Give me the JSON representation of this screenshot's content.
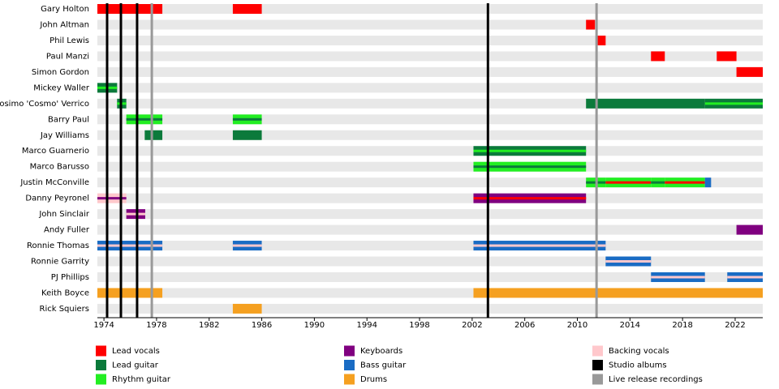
{
  "chart_data": {
    "type": "timeline",
    "xlim": [
      1973.5,
      2024.1
    ],
    "xticks": [
      1974,
      1978,
      1982,
      1986,
      1990,
      1994,
      1998,
      2002,
      2006,
      2010,
      2014,
      2018,
      2022
    ],
    "series": [
      {
        "name": "Lead vocals",
        "color": "#ff0000"
      },
      {
        "name": "Lead guitar",
        "color": "#0b7a3b"
      },
      {
        "name": "Rhythm guitar",
        "color": "#22ee22"
      },
      {
        "name": "Keyboards",
        "color": "#800080"
      },
      {
        "name": "Bass guitar",
        "color": "#1a6cc4"
      },
      {
        "name": "Drums",
        "color": "#f5a020"
      },
      {
        "name": "Backing vocals",
        "color": "#ffc8cc"
      },
      {
        "name": "Studio albums",
        "color": "#000000",
        "values": [
          1974.24,
          1975.29,
          1976.52,
          2003.2
        ]
      },
      {
        "name": "Live release recordings",
        "color": "#999999",
        "values": [
          1977.64,
          2011.46
        ]
      }
    ],
    "members": [
      {
        "name": "Gary Holton",
        "periods": [
          {
            "start": 1973.5,
            "end": 1978.44,
            "role": "Lead vocals"
          },
          {
            "start": 1983.8,
            "end": 1986.0,
            "role": "Lead vocals"
          }
        ]
      },
      {
        "name": "John Altman",
        "periods": [
          {
            "start": 2010.66,
            "end": 2011.34,
            "role": "Lead vocals"
          }
        ]
      },
      {
        "name": "Phil Lewis",
        "periods": [
          {
            "start": 2011.4,
            "end": 2012.15,
            "role": "Lead vocals"
          }
        ]
      },
      {
        "name": "Paul Manzi",
        "periods": [
          {
            "start": 2015.6,
            "end": 2016.65,
            "role": "Lead vocals"
          },
          {
            "start": 2020.6,
            "end": 2022.1,
            "role": "Lead vocals"
          }
        ]
      },
      {
        "name": "Simon Gordon",
        "periods": [
          {
            "start": 2022.1,
            "end": 2024.1,
            "role": "Lead vocals"
          }
        ]
      },
      {
        "name": "Mickey Waller",
        "periods": [
          {
            "start": 1973.5,
            "end": 1975.0,
            "role": "Lead guitar",
            "second": "Rhythm guitar"
          }
        ]
      },
      {
        "name": "Cosimo 'Cosmo' Verrico",
        "periods": [
          {
            "start": 1975.0,
            "end": 1975.7,
            "role": "Lead guitar",
            "second": "Rhythm guitar"
          },
          {
            "start": 2010.66,
            "end": 2019.7,
            "role": "Lead guitar"
          },
          {
            "start": 2019.7,
            "end": 2024.1,
            "role": "Lead guitar",
            "second": "Rhythm guitar"
          }
        ]
      },
      {
        "name": "Barry Paul",
        "periods": [
          {
            "start": 1975.7,
            "end": 1978.44,
            "role": "Rhythm guitar",
            "second": "Lead guitar"
          },
          {
            "start": 1983.8,
            "end": 1986.0,
            "role": "Rhythm guitar",
            "second": "Lead guitar"
          }
        ]
      },
      {
        "name": "Jay Williams",
        "periods": [
          {
            "start": 1977.1,
            "end": 1978.44,
            "role": "Lead guitar"
          },
          {
            "start": 1983.8,
            "end": 1986.0,
            "role": "Lead guitar"
          }
        ]
      },
      {
        "name": "Marco Guarnerio",
        "periods": [
          {
            "start": 2002.1,
            "end": 2010.66,
            "role": "Lead guitar",
            "second": "Rhythm guitar"
          }
        ]
      },
      {
        "name": "Marco Barusso",
        "periods": [
          {
            "start": 2002.1,
            "end": 2010.66,
            "role": "Rhythm guitar",
            "second": "Lead guitar"
          }
        ]
      },
      {
        "name": "Justin McConville",
        "periods": [
          {
            "start": 2010.66,
            "end": 2012.15,
            "role": "Rhythm guitar",
            "second": "Lead guitar"
          },
          {
            "start": 2012.15,
            "end": 2015.6,
            "role": "Rhythm guitar",
            "second": "Lead vocals"
          },
          {
            "start": 2015.6,
            "end": 2016.65,
            "role": "Rhythm guitar",
            "second": "Lead guitar"
          },
          {
            "start": 2016.65,
            "end": 2019.7,
            "role": "Rhythm guitar",
            "second": "Lead vocals"
          },
          {
            "start": 2019.7,
            "end": 2020.17,
            "role": "Bass guitar"
          }
        ]
      },
      {
        "name": "Danny Peyronel",
        "periods": [
          {
            "start": 1973.5,
            "end": 1975.7,
            "role": "Backing vocals",
            "second": "Keyboards"
          },
          {
            "start": 2002.1,
            "end": 2010.66,
            "role": "Keyboards",
            "second": "Lead vocals"
          }
        ]
      },
      {
        "name": "John Sinclair",
        "periods": [
          {
            "start": 1975.7,
            "end": 1977.14,
            "role": "Keyboards",
            "second": "Backing vocals"
          }
        ]
      },
      {
        "name": "Andy Fuller",
        "periods": [
          {
            "start": 2022.1,
            "end": 2024.1,
            "role": "Keyboards"
          }
        ]
      },
      {
        "name": "Ronnie Thomas",
        "periods": [
          {
            "start": 1973.5,
            "end": 1978.44,
            "role": "Bass guitar",
            "second": "Backing vocals"
          },
          {
            "start": 1983.8,
            "end": 1986.0,
            "role": "Bass guitar",
            "second": "Backing vocals"
          },
          {
            "start": 2002.1,
            "end": 2012.15,
            "role": "Bass guitar",
            "second": "Backing vocals"
          }
        ]
      },
      {
        "name": "Ronnie Garrity",
        "periods": [
          {
            "start": 2012.15,
            "end": 2015.6,
            "role": "Bass guitar",
            "second": "Backing vocals"
          }
        ]
      },
      {
        "name": "PJ Phillips",
        "periods": [
          {
            "start": 2015.6,
            "end": 2019.7,
            "role": "Bass guitar",
            "second": "Backing vocals"
          },
          {
            "start": 2021.4,
            "end": 2024.1,
            "role": "Bass guitar",
            "second": "Backing vocals"
          }
        ]
      },
      {
        "name": "Keith Boyce",
        "periods": [
          {
            "start": 1973.5,
            "end": 1978.44,
            "role": "Drums"
          },
          {
            "start": 2002.1,
            "end": 2024.1,
            "role": "Drums"
          }
        ]
      },
      {
        "name": "Rick Squiers",
        "periods": [
          {
            "start": 1983.8,
            "end": 1986.0,
            "role": "Drums"
          }
        ]
      }
    ]
  }
}
